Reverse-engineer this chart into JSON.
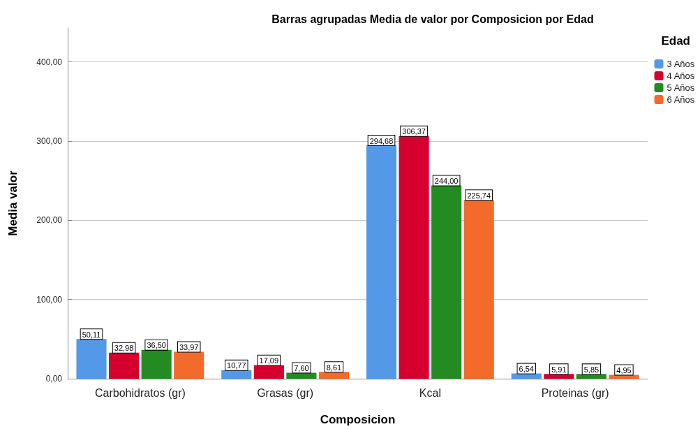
{
  "chart_data": {
    "type": "bar",
    "title": "Barras agrupadas Media de valor por Composicion por Edad",
    "xlabel": "Composicion",
    "ylabel": "Media valor",
    "legend_title": "Edad",
    "categories": [
      "Carbohidratos (gr)",
      "Grasas (gr)",
      "Kcal",
      "Proteinas (gr)"
    ],
    "series": [
      {
        "name": "3 Años",
        "color": "#5499e8",
        "values": [
          50.11,
          10.77,
          294.68,
          6.54
        ],
        "value_labels": [
          "50,11",
          "10,77",
          "294,68",
          "6,54"
        ]
      },
      {
        "name": "4 Años",
        "color": "#d6002f",
        "values": [
          32.98,
          17.09,
          306.37,
          5.91
        ],
        "value_labels": [
          "32,98",
          "17,09",
          "306,37",
          "5,91"
        ]
      },
      {
        "name": "5 Años",
        "color": "#238b21",
        "values": [
          36.5,
          7.6,
          244.0,
          5.85
        ],
        "value_labels": [
          "36,50",
          "7,60",
          "244,00",
          "5,85"
        ]
      },
      {
        "name": "6 Años",
        "color": "#f26b2b",
        "values": [
          33.97,
          8.61,
          225.74,
          4.95
        ],
        "value_labels": [
          "33,97",
          "8,61",
          "225,74",
          "4,95"
        ]
      }
    ],
    "ylim": [
      0,
      443
    ],
    "yticks": [
      {
        "value": 0,
        "label": "0,00"
      },
      {
        "value": 100,
        "label": "100,00"
      },
      {
        "value": 200,
        "label": "200,00"
      },
      {
        "value": 300,
        "label": "300,00"
      },
      {
        "value": 400,
        "label": "400,00"
      }
    ],
    "grid": "y",
    "legend": "top right"
  }
}
